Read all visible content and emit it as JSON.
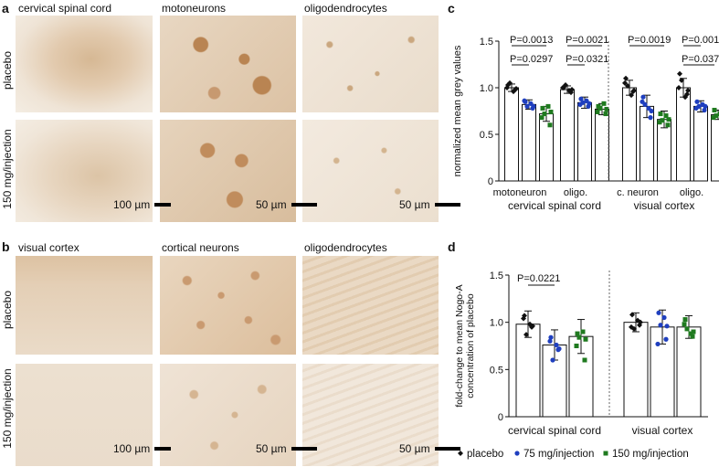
{
  "panels": {
    "a": {
      "letter": "a",
      "columns": [
        "cervical spinal cord",
        "motoneurons",
        "oligodendrocytes"
      ],
      "rows": [
        "placebo",
        "150 mg/injection"
      ],
      "scale_bars": [
        "100 µm",
        "50 µm",
        "50 µm"
      ]
    },
    "b": {
      "letter": "b",
      "columns": [
        "visual cortex",
        "cortical neurons",
        "oligodendrocytes"
      ],
      "rows": [
        "placebo",
        "150 mg/injection"
      ],
      "scale_bars": [
        "100 µm",
        "50 µm",
        "50 µm"
      ]
    },
    "c": {
      "letter": "c"
    },
    "d": {
      "letter": "d"
    }
  },
  "colors": {
    "placebo": "#111111",
    "dose75": "#1f3fbf",
    "dose150": "#1f7a1f",
    "tissue_light": "#efe4d6",
    "tissue_stain": "#c99a70"
  },
  "legend": [
    {
      "marker": "diamond",
      "label": "placebo"
    },
    {
      "marker": "circle",
      "label": "75 mg/injection"
    },
    {
      "marker": "square",
      "label": "150 mg/injection"
    }
  ],
  "chart_data": [
    {
      "type": "bar",
      "panel": "c",
      "ylabel": "normalized mean grey values",
      "ylim": [
        0,
        1.5
      ],
      "yticks": [
        0,
        0.5,
        1.0,
        1.5
      ],
      "yticklabels": [
        "0",
        "0.5",
        "1.0",
        "1.5"
      ],
      "categories": [
        "motoneuron",
        "oligo.",
        "c. neuron",
        "oligo."
      ],
      "groups": [
        "cervical spinal cord",
        "visual cortex"
      ],
      "series": [
        {
          "name": "placebo",
          "values": [
            1.0,
            0.98,
            1.0,
            1.0
          ],
          "sd": [
            0.04,
            0.04,
            0.08,
            0.1
          ],
          "points": [
            [
              1.03,
              0.98,
              1.05,
              0.96,
              1.0,
              0.99
            ],
            [
              1.0,
              0.95,
              1.03,
              0.97,
              1.0,
              0.98
            ],
            [
              1.1,
              0.96,
              1.02,
              0.92,
              1.05,
              0.97
            ],
            [
              1.15,
              0.93,
              1.08,
              0.9,
              1.0,
              0.97
            ]
          ]
        },
        {
          "name": "75 mg/injection",
          "values": [
            0.82,
            0.84,
            0.8,
            0.8
          ],
          "sd": [
            0.05,
            0.06,
            0.12,
            0.06
          ],
          "points": [
            [
              0.85,
              0.78,
              0.8,
              0.83,
              0.86,
              0.8
            ],
            [
              0.88,
              0.8,
              0.84,
              0.86,
              0.82,
              0.83
            ],
            [
              0.9,
              0.68,
              0.82,
              0.78,
              0.85,
              0.75
            ],
            [
              0.85,
              0.76,
              0.8,
              0.82,
              0.78,
              0.8
            ]
          ]
        },
        {
          "name": "150 mg/injection",
          "values": [
            0.72,
            0.77,
            0.66,
            0.71
          ],
          "sd": [
            0.08,
            0.06,
            0.09,
            0.05
          ],
          "points": [
            [
              0.78,
              0.6,
              0.72,
              0.8,
              0.68,
              0.74
            ],
            [
              0.8,
              0.72,
              0.78,
              0.83,
              0.74,
              0.77
            ],
            [
              0.72,
              0.6,
              0.65,
              0.7,
              0.63,
              0.66
            ],
            [
              0.76,
              0.68,
              0.7,
              0.72,
              0.68,
              0.71
            ]
          ]
        }
      ],
      "annotations": [
        "P=0.0013",
        "P=0.0297",
        "P=0.0021",
        "P=0.0321",
        "P=0.0019",
        "P=0.001",
        "P=0.037"
      ]
    },
    {
      "type": "bar",
      "panel": "d",
      "ylabel": "fold-change to mean Nogo-A concentration of placebo",
      "ylim": [
        0,
        1.5
      ],
      "yticks": [
        0,
        0.5,
        1.0,
        1.5
      ],
      "yticklabels": [
        "0",
        "0.5",
        "1.0",
        "1.5"
      ],
      "categories": [
        "cervical spinal cord",
        "visual cortex"
      ],
      "series": [
        {
          "name": "placebo",
          "values": [
            0.98,
            1.0
          ],
          "sd": [
            0.14,
            0.1
          ],
          "points": [
            [
              1.07,
              0.95,
              0.87,
              0.98,
              1.04,
              0.96
            ],
            [
              1.08,
              0.97,
              0.93,
              1.02,
              0.95,
              1.0
            ]
          ]
        },
        {
          "name": "75 mg/injection",
          "values": [
            0.76,
            0.95
          ],
          "sd": [
            0.16,
            0.18
          ],
          "points": [
            [
              0.84,
              0.71,
              0.6,
              0.76,
              0.8,
              0.72
            ],
            [
              1.1,
              0.82,
              0.97,
              1.05,
              0.77,
              0.96
            ]
          ]
        },
        {
          "name": "150 mg/injection",
          "values": [
            0.85,
            0.95
          ],
          "sd": [
            0.18,
            0.12
          ],
          "points": [
            [
              0.88,
              0.6,
              0.84,
              0.9,
              0.75,
              0.82
            ],
            [
              1.03,
              0.85,
              0.93,
              0.88,
              0.98,
              0.9
            ]
          ]
        }
      ],
      "annotations": [
        "P=0.0221"
      ]
    }
  ]
}
